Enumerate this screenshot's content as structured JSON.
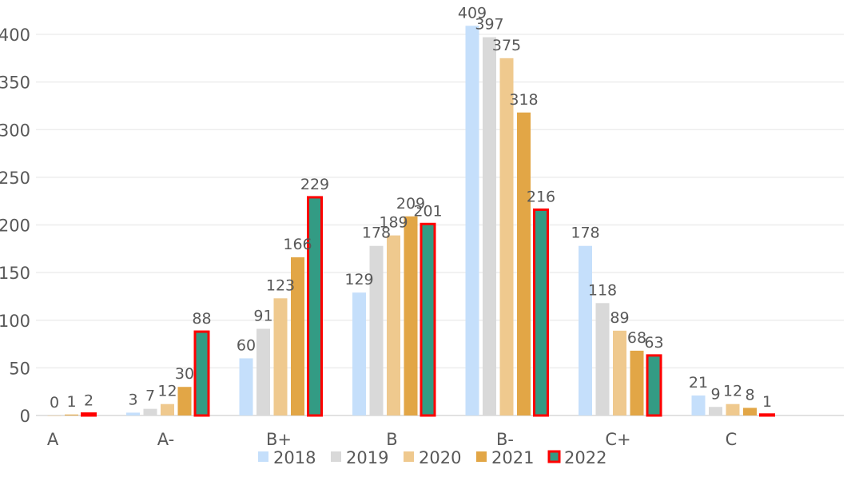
{
  "chart_data": {
    "type": "bar",
    "categories": [
      "A",
      "A-",
      "B+",
      "B",
      "B-",
      "C+",
      "C"
    ],
    "series": [
      {
        "name": "2018",
        "color": "#c5dffb",
        "values": [
          null,
          3,
          60,
          129,
          409,
          178,
          21
        ]
      },
      {
        "name": "2019",
        "color": "#d9d9d9",
        "values": [
          null,
          7,
          91,
          178,
          397,
          118,
          9
        ]
      },
      {
        "name": "2020",
        "color": "#efc98e",
        "values": [
          0,
          12,
          123,
          189,
          375,
          89,
          12
        ]
      },
      {
        "name": "2021",
        "color": "#e2a646",
        "values": [
          1,
          30,
          166,
          209,
          318,
          68,
          8
        ]
      },
      {
        "name": "2022",
        "color": "#339b84",
        "outline": "#ff0000",
        "values": [
          2,
          88,
          229,
          201,
          216,
          63,
          1
        ]
      }
    ],
    "ylim": [
      0,
      400
    ],
    "yticks": [
      0,
      50,
      100,
      150,
      200,
      250,
      300,
      350,
      400
    ],
    "grid": true,
    "legend": "bottom",
    "title": "",
    "xlabel": "",
    "ylabel": ""
  }
}
